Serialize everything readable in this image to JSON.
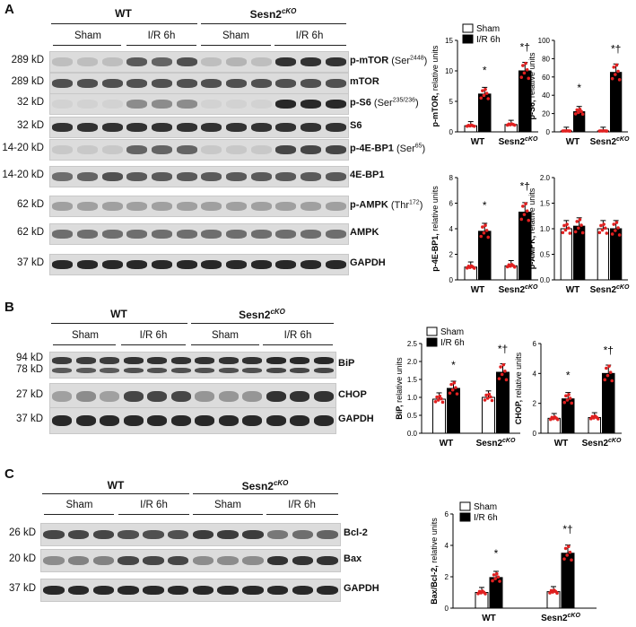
{
  "panels": {
    "A": {
      "letter": "A",
      "group_wt": "WT",
      "group_ko": "Sesn2",
      "group_ko_sup": "cKO",
      "conditions": [
        "Sham",
        "I/R 6h",
        "Sham",
        "I/R 6h"
      ],
      "rows": [
        {
          "kd": "289 kD",
          "label": "p-mTOR",
          "site": "(Ser",
          "site_sup": "2448",
          "site_end": ")",
          "bands": [
            0.15,
            0.15,
            0.15,
            0.65,
            0.6,
            0.7,
            0.15,
            0.2,
            0.15,
            0.85,
            0.85,
            0.85
          ]
        },
        {
          "kd": "289 kD",
          "label": "mTOR",
          "site": "",
          "site_sup": "",
          "site_end": "",
          "bands": [
            0.7,
            0.7,
            0.7,
            0.7,
            0.7,
            0.7,
            0.7,
            0.7,
            0.7,
            0.7,
            0.7,
            0.7
          ]
        },
        {
          "kd": "32 kD",
          "label": "p-S6",
          "site": "(Ser",
          "site_sup": "235/236",
          "site_end": ")",
          "bands": [
            0.05,
            0.05,
            0.05,
            0.4,
            0.4,
            0.4,
            0.05,
            0.05,
            0.05,
            0.9,
            0.9,
            0.9
          ]
        },
        {
          "kd": "32 kD",
          "label": "S6",
          "site": "",
          "site_sup": "",
          "site_end": "",
          "bands": [
            0.85,
            0.85,
            0.85,
            0.85,
            0.85,
            0.85,
            0.85,
            0.85,
            0.85,
            0.85,
            0.85,
            0.85
          ]
        },
        {
          "kd": "14-20 kD",
          "label": "p-4E-BP1",
          "site": "(Ser",
          "site_sup": "65",
          "site_end": ")",
          "bands": [
            0.1,
            0.1,
            0.1,
            0.6,
            0.6,
            0.6,
            0.1,
            0.1,
            0.1,
            0.75,
            0.75,
            0.75
          ]
        },
        {
          "kd": "14-20 kD",
          "label": "4E-BP1",
          "site": "",
          "site_sup": "",
          "site_end": "",
          "bands": [
            0.55,
            0.6,
            0.7,
            0.65,
            0.65,
            0.65,
            0.65,
            0.65,
            0.65,
            0.65,
            0.65,
            0.65
          ]
        },
        {
          "kd": "62 kD",
          "label": "p-AMPK",
          "site": "(Thr",
          "site_sup": "172",
          "site_end": ")",
          "bands": [
            0.3,
            0.3,
            0.3,
            0.3,
            0.3,
            0.3,
            0.3,
            0.3,
            0.3,
            0.3,
            0.3,
            0.3
          ]
        },
        {
          "kd": "62 kD",
          "label": "AMPK",
          "site": "",
          "site_sup": "",
          "site_end": "",
          "bands": [
            0.55,
            0.55,
            0.55,
            0.55,
            0.55,
            0.55,
            0.55,
            0.55,
            0.55,
            0.55,
            0.55,
            0.55
          ]
        },
        {
          "kd": "37 kD",
          "label": "GAPDH",
          "site": "",
          "site_sup": "",
          "site_end": "",
          "bands": [
            0.9,
            0.9,
            0.9,
            0.9,
            0.9,
            0.9,
            0.9,
            0.9,
            0.9,
            0.9,
            0.9,
            0.9
          ]
        }
      ]
    },
    "B": {
      "letter": "B",
      "group_wt": "WT",
      "group_ko": "Sesn2",
      "group_ko_sup": "cKO",
      "conditions": [
        "Sham",
        "I/R 6h",
        "Sham",
        "I/R 6h"
      ],
      "rows": [
        {
          "kd": "94 kD",
          "kd2": "78 kD",
          "label": "BiP",
          "bands": [
            0.8,
            0.8,
            0.8,
            0.85,
            0.85,
            0.85,
            0.85,
            0.85,
            0.85,
            0.9,
            0.9,
            0.9
          ]
        },
        {
          "kd": "27 kD",
          "label": "CHOP",
          "bands": [
            0.3,
            0.4,
            0.3,
            0.75,
            0.75,
            0.75,
            0.35,
            0.35,
            0.35,
            0.85,
            0.85,
            0.85
          ]
        },
        {
          "kd": "37 kD",
          "label": "GAPDH",
          "bands": [
            0.9,
            0.9,
            0.9,
            0.9,
            0.9,
            0.9,
            0.9,
            0.9,
            0.9,
            0.9,
            0.9,
            0.9
          ]
        }
      ]
    },
    "C": {
      "letter": "C",
      "group_wt": "WT",
      "group_ko": "Sesn2",
      "group_ko_sup": "cKO",
      "conditions": [
        "Sham",
        "I/R 6h",
        "Sham",
        "I/R 6h"
      ],
      "rows": [
        {
          "kd": "26 kD",
          "label": "Bcl-2",
          "bands": [
            0.75,
            0.75,
            0.75,
            0.7,
            0.7,
            0.7,
            0.8,
            0.8,
            0.8,
            0.5,
            0.55,
            0.6
          ]
        },
        {
          "kd": "20 kD",
          "label": "Bax",
          "bands": [
            0.4,
            0.45,
            0.45,
            0.75,
            0.75,
            0.75,
            0.4,
            0.4,
            0.4,
            0.85,
            0.85,
            0.85
          ]
        },
        {
          "kd": "37 kD",
          "label": "GAPDH",
          "bands": [
            0.9,
            0.9,
            0.9,
            0.9,
            0.9,
            0.9,
            0.9,
            0.9,
            0.9,
            0.9,
            0.9,
            0.9
          ]
        }
      ]
    }
  },
  "legend": {
    "sham": "Sham",
    "ir": "I/R 6h",
    "x_wt": "WT",
    "x_ko": "Sesn2",
    "x_ko_sup": "cKO"
  },
  "colors": {
    "sham_fill": "#ffffff",
    "ir_fill": "#000000",
    "points": "#e02020",
    "blot_bg": "#dcdcdc"
  },
  "chart_data": [
    {
      "id": "A1",
      "type": "bar",
      "ylabel": "p-mTOR, relative units",
      "ylim": [
        0,
        15
      ],
      "yticks": [
        0,
        5,
        10,
        15
      ],
      "categories": [
        "WT",
        "Sesn2cKO"
      ],
      "series": [
        {
          "name": "Sham",
          "values": [
            1.0,
            1.2
          ]
        },
        {
          "name": "I/R 6h",
          "values": [
            6.2,
            10.0
          ]
        }
      ],
      "annotations": [
        "*",
        "*†"
      ]
    },
    {
      "id": "A2",
      "type": "bar",
      "ylabel": "p-S6, relative units",
      "ylim": [
        0,
        100
      ],
      "yticks": [
        0,
        20,
        40,
        60,
        80,
        100
      ],
      "categories": [
        "WT",
        "Sesn2cKO"
      ],
      "series": [
        {
          "values": [
            1.0,
            1.0
          ]
        },
        {
          "values": [
            22,
            65
          ]
        }
      ],
      "annotations": [
        "*",
        "*†"
      ]
    },
    {
      "id": "A3",
      "type": "bar",
      "ylabel": "p-4E-BP1, relative units",
      "ylim": [
        0,
        8
      ],
      "yticks": [
        0,
        2,
        4,
        6,
        8
      ],
      "categories": [
        "WT",
        "Sesn2cKO"
      ],
      "series": [
        {
          "values": [
            1.0,
            1.1
          ]
        },
        {
          "values": [
            3.8,
            5.3
          ]
        }
      ],
      "annotations": [
        "*",
        "*†"
      ]
    },
    {
      "id": "A4",
      "type": "bar",
      "ylabel": "p-AMPK, relative units",
      "ylim": [
        0,
        2.0
      ],
      "yticks": [
        0.0,
        0.5,
        1.0,
        1.5,
        2.0
      ],
      "categories": [
        "WT",
        "Sesn2cKO"
      ],
      "series": [
        {
          "values": [
            1.0,
            1.0
          ]
        },
        {
          "values": [
            1.05,
            1.0
          ]
        }
      ],
      "annotations": [
        "",
        ""
      ]
    },
    {
      "id": "B1",
      "type": "bar",
      "ylabel": "BiP, relative units",
      "ylim": [
        0,
        2.5
      ],
      "yticks": [
        0.0,
        0.5,
        1.0,
        1.5,
        2.0,
        2.5
      ],
      "categories": [
        "WT",
        "Sesn2cKO"
      ],
      "series": [
        {
          "name": "Sham",
          "values": [
            0.95,
            1.0
          ]
        },
        {
          "name": "I/R 6h",
          "values": [
            1.25,
            1.7
          ]
        }
      ],
      "annotations": [
        "*",
        "*†"
      ]
    },
    {
      "id": "B2",
      "type": "bar",
      "ylabel": "CHOP, relative units",
      "ylim": [
        0,
        6
      ],
      "yticks": [
        0,
        2,
        4,
        6
      ],
      "categories": [
        "WT",
        "Sesn2cKO"
      ],
      "series": [
        {
          "values": [
            1.0,
            1.05
          ]
        },
        {
          "values": [
            2.3,
            4.0
          ]
        }
      ],
      "annotations": [
        "*",
        "*†"
      ]
    },
    {
      "id": "C1",
      "type": "bar",
      "ylabel": "Bax/Bcl-2, relative units",
      "ylim": [
        0,
        6
      ],
      "yticks": [
        0,
        2,
        4,
        6
      ],
      "categories": [
        "WT",
        "Sesn2cKO"
      ],
      "series": [
        {
          "name": "Sham",
          "values": [
            1.0,
            1.05
          ]
        },
        {
          "name": "I/R 6h",
          "values": [
            1.95,
            3.5
          ]
        }
      ],
      "annotations": [
        "*",
        "*†"
      ]
    }
  ]
}
